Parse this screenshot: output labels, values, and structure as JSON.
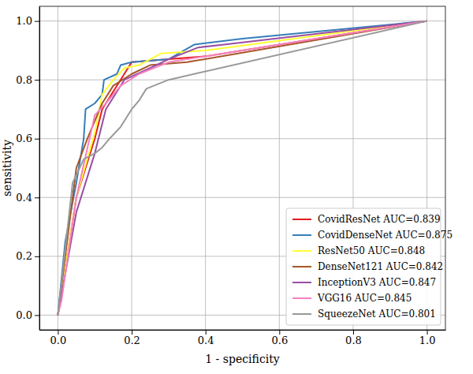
{
  "chart_data": {
    "type": "line",
    "x_label": "1 - specificity",
    "y_label": "sensitivity",
    "xlim": [
      -0.05,
      1.05
    ],
    "ylim": [
      -0.05,
      1.05
    ],
    "xticks": [
      {
        "value": 0,
        "label": "0.0"
      },
      {
        "value": 0.2,
        "label": "0.2"
      },
      {
        "value": 0.4,
        "label": "0.4"
      },
      {
        "value": 0.6,
        "label": "0.6"
      },
      {
        "value": 0.8,
        "label": "0.8"
      },
      {
        "value": 1,
        "label": "1.0"
      }
    ],
    "yticks": [
      {
        "value": 0,
        "label": "0.0"
      },
      {
        "value": 0.2,
        "label": "0.2"
      },
      {
        "value": 0.4,
        "label": "0.4"
      },
      {
        "value": 0.6,
        "label": "0.6"
      },
      {
        "value": 0.8,
        "label": "0.8"
      },
      {
        "value": 1,
        "label": "1.0"
      }
    ],
    "grid": true,
    "legend": "lower right",
    "series": [
      {
        "name": "CovidResNet AUC=0.839",
        "color": "#e41a1c",
        "x": [
          0,
          0.05,
          0.1,
          0.12,
          0.15,
          0.17,
          0.2,
          0.3,
          0.4,
          1
        ],
        "values": [
          0,
          0.4,
          0.6,
          0.7,
          0.76,
          0.8,
          0.86,
          0.87,
          0.88,
          1
        ]
      },
      {
        "name": "CovidDenseNet AUC=0.875",
        "color": "#377eb8",
        "x": [
          0,
          0.02,
          0.05,
          0.07,
          0.075,
          0.1,
          0.12,
          0.125,
          0.16,
          0.17,
          0.2,
          0.3,
          0.37,
          0.5,
          1
        ],
        "values": [
          0,
          0.25,
          0.45,
          0.6,
          0.7,
          0.72,
          0.75,
          0.8,
          0.82,
          0.85,
          0.86,
          0.87,
          0.92,
          0.94,
          1
        ]
      },
      {
        "name": "ResNet50 AUC=0.848",
        "color": "#ffff33",
        "x": [
          0,
          0.05,
          0.1,
          0.12,
          0.15,
          0.18,
          0.22,
          0.28,
          0.4,
          1
        ],
        "values": [
          0,
          0.4,
          0.62,
          0.75,
          0.8,
          0.84,
          0.85,
          0.89,
          0.9,
          1
        ]
      },
      {
        "name": "DenseNet121 AUC=0.842",
        "color": "#a65628",
        "x": [
          0,
          0.05,
          0.08,
          0.12,
          0.15,
          0.2,
          0.25,
          0.35,
          1
        ],
        "values": [
          0,
          0.5,
          0.6,
          0.72,
          0.78,
          0.82,
          0.85,
          0.86,
          1
        ]
      },
      {
        "name": "InceptionV3 AUC=0.847",
        "color": "#984ea3",
        "x": [
          0,
          0.05,
          0.1,
          0.13,
          0.18,
          0.25,
          0.3,
          0.38,
          0.45,
          1
        ],
        "values": [
          0,
          0.35,
          0.55,
          0.7,
          0.8,
          0.84,
          0.87,
          0.91,
          0.92,
          1
        ]
      },
      {
        "name": "VGG16 AUC=0.845",
        "color": "#f781bf",
        "x": [
          0,
          0.01,
          0.05,
          0.1,
          0.13,
          0.17,
          0.22,
          0.3,
          1
        ],
        "values": [
          0,
          0.05,
          0.4,
          0.68,
          0.72,
          0.78,
          0.82,
          0.86,
          1
        ]
      },
      {
        "name": "SqueezeNet AUC=0.801",
        "color": "#999999",
        "x": [
          0,
          0.04,
          0.07,
          0.1,
          0.12,
          0.14,
          0.17,
          0.2,
          0.22,
          0.24,
          0.3,
          1
        ],
        "values": [
          0,
          0.45,
          0.53,
          0.55,
          0.57,
          0.6,
          0.64,
          0.7,
          0.73,
          0.77,
          0.8,
          1
        ]
      }
    ]
  }
}
